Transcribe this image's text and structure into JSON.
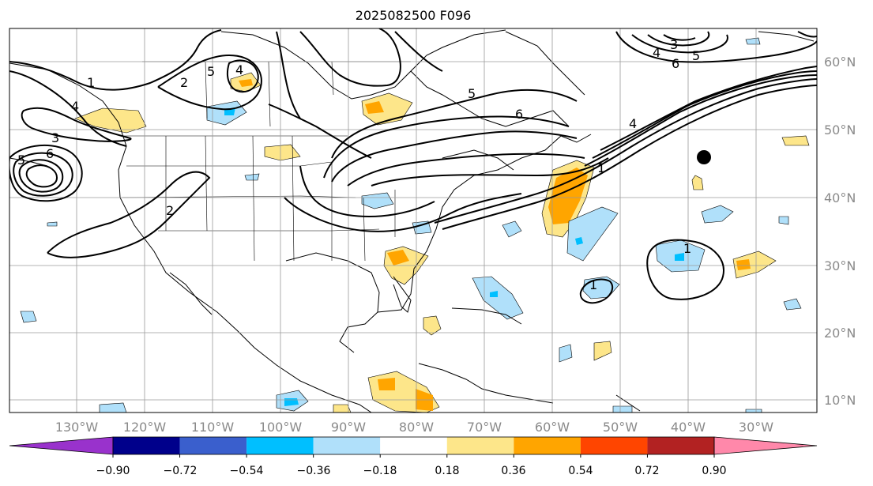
{
  "title": "2025082500 F096",
  "map": {
    "lon_labels": [
      "130°W",
      "120°W",
      "110°W",
      "100°W",
      "90°W",
      "80°W",
      "70°W",
      "60°W",
      "50°W",
      "40°W",
      "30°W"
    ],
    "lat_labels": [
      "60°N",
      "50°N",
      "40°N",
      "30°N",
      "20°N",
      "10°N"
    ],
    "marker": "black-dot",
    "contour_labels": [
      "1",
      "2",
      "3",
      "4",
      "5",
      "6"
    ]
  },
  "colorbar": {
    "ticks": [
      "−0.90",
      "−0.72",
      "−0.54",
      "−0.36",
      "−0.18",
      "0.18",
      "0.36",
      "0.54",
      "0.72",
      "0.90"
    ],
    "colors": [
      "#9932cc",
      "#00008b",
      "#3a5fcd",
      "#00bfff",
      "#b0e0fa",
      "#ffffff",
      "#fde68a",
      "#ffa500",
      "#ff4500",
      "#b22222",
      "#ff88aa"
    ]
  }
}
